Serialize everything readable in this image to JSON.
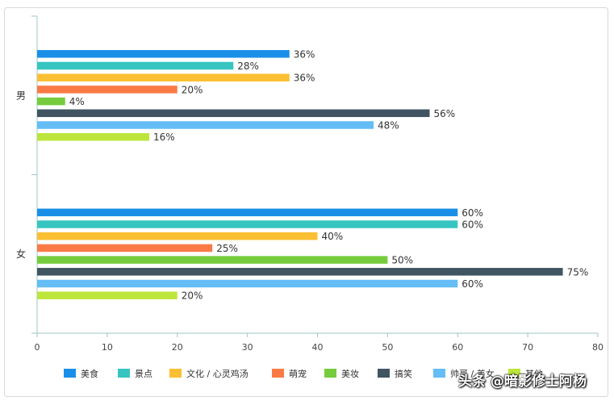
{
  "chart_data": {
    "type": "bar",
    "orientation": "horizontal",
    "categories": [
      "男",
      "女"
    ],
    "series": [
      {
        "name": "美食",
        "color": "#1a8fe8",
        "values": [
          36,
          60
        ]
      },
      {
        "name": "景点",
        "color": "#36c5c0",
        "values": [
          28,
          60
        ]
      },
      {
        "name": "文化 / 心灵鸡汤",
        "color": "#fbbf33",
        "values": [
          36,
          40
        ]
      },
      {
        "name": "萌宠",
        "color": "#fa7a46",
        "values": [
          20,
          25
        ]
      },
      {
        "name": "美妆",
        "color": "#76cc3c",
        "values": [
          4,
          50
        ]
      },
      {
        "name": "搞笑",
        "color": "#405462",
        "values": [
          56,
          75
        ]
      },
      {
        "name": "帅哥 / 美女",
        "color": "#65bdf5",
        "values": [
          48,
          60
        ]
      },
      {
        "name": "其他",
        "color": "#bce63b",
        "values": [
          16,
          20
        ]
      }
    ],
    "value_suffix": "%",
    "xlim": [
      0,
      80
    ],
    "xticks": [
      0,
      10,
      20,
      30,
      40,
      50,
      60,
      70,
      80
    ],
    "grid": false,
    "legend": "bottom"
  },
  "watermark": "头条 @暗影修士阿杨"
}
